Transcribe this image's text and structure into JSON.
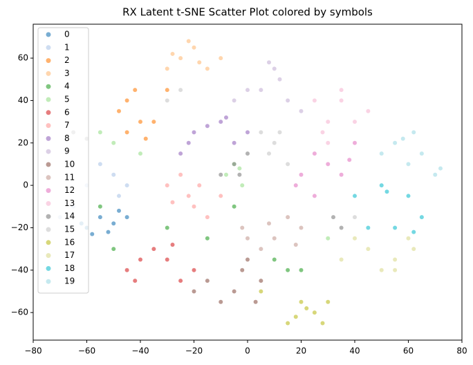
{
  "chart_data": {
    "type": "scatter",
    "title": "RX Latent t-SNE Scatter Plot colored by symbols",
    "xlim": [
      -80,
      80
    ],
    "ylim": [
      -73,
      76
    ],
    "xticks": [
      {
        "value": -80,
        "label": "−80"
      },
      {
        "value": -60,
        "label": "−60"
      },
      {
        "value": -40,
        "label": "−40"
      },
      {
        "value": -20,
        "label": "−20"
      },
      0,
      20,
      40,
      60,
      80
    ],
    "yticks": [
      {
        "value": -60,
        "label": "−60"
      },
      {
        "value": -40,
        "label": "−40"
      },
      {
        "value": -20,
        "label": "−20"
      },
      0,
      20,
      40,
      60
    ],
    "legend": "upper left",
    "series": [
      {
        "name": "0",
        "color": "#1f77b4",
        "x": [
          -55,
          -50,
          -60,
          -45,
          -58,
          -48,
          -62,
          -52
        ],
        "values": [
          -15,
          -18,
          -20,
          -15,
          -23,
          -12,
          -18,
          -22
        ]
      },
      {
        "name": "1",
        "color": "#aec7e8",
        "x": [
          -50,
          -65,
          -45,
          -55,
          -70,
          -60,
          -48,
          -67
        ],
        "values": [
          5,
          -10,
          0,
          10,
          -15,
          0,
          -5,
          -20
        ]
      },
      {
        "name": "2",
        "color": "#ff7f0e",
        "x": [
          -45,
          -45,
          -35,
          -30,
          -40,
          -48,
          -38,
          -42
        ],
        "values": [
          40,
          25,
          30,
          45,
          30,
          35,
          22,
          45
        ]
      },
      {
        "name": "3",
        "color": "#ffbb78",
        "x": [
          -25,
          -20,
          -30,
          -15,
          -10,
          -22,
          -28,
          -18
        ],
        "values": [
          60,
          65,
          55,
          55,
          60,
          68,
          62,
          58
        ]
      },
      {
        "name": "4",
        "color": "#2ca02c",
        "x": [
          -50,
          -30,
          -15,
          10,
          20,
          -5,
          -55,
          15
        ],
        "values": [
          -30,
          -20,
          -25,
          -35,
          -40,
          -10,
          -10,
          -40
        ]
      },
      {
        "name": "5",
        "color": "#98df8a",
        "x": [
          -55,
          -40,
          -5,
          -2,
          30,
          -8,
          -50,
          -3
        ],
        "values": [
          25,
          15,
          10,
          0,
          -25,
          5,
          20,
          8
        ]
      },
      {
        "name": "6",
        "color": "#d62728",
        "x": [
          -30,
          -45,
          -25,
          -35,
          -20,
          -40,
          -28,
          -42
        ],
        "values": [
          -35,
          -40,
          -45,
          -30,
          -40,
          -35,
          -28,
          -45
        ]
      },
      {
        "name": "7",
        "color": "#ff9896",
        "x": [
          -25,
          -20,
          -15,
          -30,
          -10,
          -22,
          -18,
          -28
        ],
        "values": [
          5,
          -10,
          -15,
          0,
          -5,
          -5,
          0,
          -8
        ]
      },
      {
        "name": "8",
        "color": "#9467bd",
        "x": [
          -20,
          -10,
          -5,
          -25,
          0,
          -15,
          -8,
          -22
        ],
        "values": [
          25,
          30,
          20,
          15,
          25,
          28,
          32,
          20
        ]
      },
      {
        "name": "9",
        "color": "#c5b0d5",
        "x": [
          10,
          5,
          15,
          -5,
          20,
          12,
          8,
          0
        ],
        "values": [
          55,
          45,
          40,
          40,
          35,
          50,
          58,
          45
        ]
      },
      {
        "name": "10",
        "color": "#8c564b",
        "x": [
          -15,
          -5,
          5,
          0,
          -20,
          -10,
          -2,
          3
        ],
        "values": [
          -45,
          -50,
          -45,
          -35,
          -50,
          -55,
          -40,
          -55
        ]
      },
      {
        "name": "11",
        "color": "#c49c94",
        "x": [
          0,
          10,
          15,
          20,
          5,
          8,
          18,
          -2
        ],
        "values": [
          -25,
          -25,
          -15,
          -20,
          -30,
          -18,
          -28,
          -20
        ]
      },
      {
        "name": "12",
        "color": "#e377c2",
        "x": [
          20,
          25,
          35,
          40,
          25,
          30,
          18,
          38
        ],
        "values": [
          5,
          15,
          5,
          20,
          -5,
          10,
          0,
          12
        ]
      },
      {
        "name": "13",
        "color": "#f7b6d2",
        "x": [
          25,
          30,
          35,
          30,
          45,
          28,
          40,
          35
        ],
        "values": [
          40,
          30,
          40,
          20,
          35,
          25,
          30,
          45
        ]
      },
      {
        "name": "14",
        "color": "#7f7f7f",
        "x": [
          -5,
          -10,
          35,
          -65,
          0,
          -3,
          32,
          -60
        ],
        "values": [
          10,
          5,
          -20,
          25,
          15,
          5,
          -15,
          22
        ]
      },
      {
        "name": "15",
        "color": "#c7c7c7",
        "x": [
          10,
          15,
          -30,
          5,
          40,
          12,
          -25,
          8
        ],
        "values": [
          20,
          10,
          40,
          25,
          -15,
          25,
          45,
          15
        ]
      },
      {
        "name": "16",
        "color": "#bcbd22",
        "x": [
          20,
          25,
          15,
          30,
          5,
          18,
          28,
          22
        ],
        "values": [
          -55,
          -60,
          -65,
          -55,
          -50,
          -62,
          -65,
          -58
        ]
      },
      {
        "name": "17",
        "color": "#dbdb8d",
        "x": [
          45,
          55,
          60,
          35,
          50,
          62,
          40,
          55
        ],
        "values": [
          -30,
          -35,
          -25,
          -35,
          -40,
          -30,
          -25,
          -40
        ]
      },
      {
        "name": "18",
        "color": "#17becf",
        "x": [
          50,
          60,
          55,
          65,
          45,
          62,
          40,
          52
        ],
        "values": [
          0,
          -5,
          -20,
          -15,
          -20,
          -22,
          -5,
          -3
        ]
      },
      {
        "name": "19",
        "color": "#9edae5",
        "x": [
          55,
          65,
          60,
          70,
          50,
          62,
          72,
          58
        ],
        "values": [
          20,
          15,
          10,
          5,
          15,
          25,
          8,
          22
        ]
      }
    ]
  }
}
